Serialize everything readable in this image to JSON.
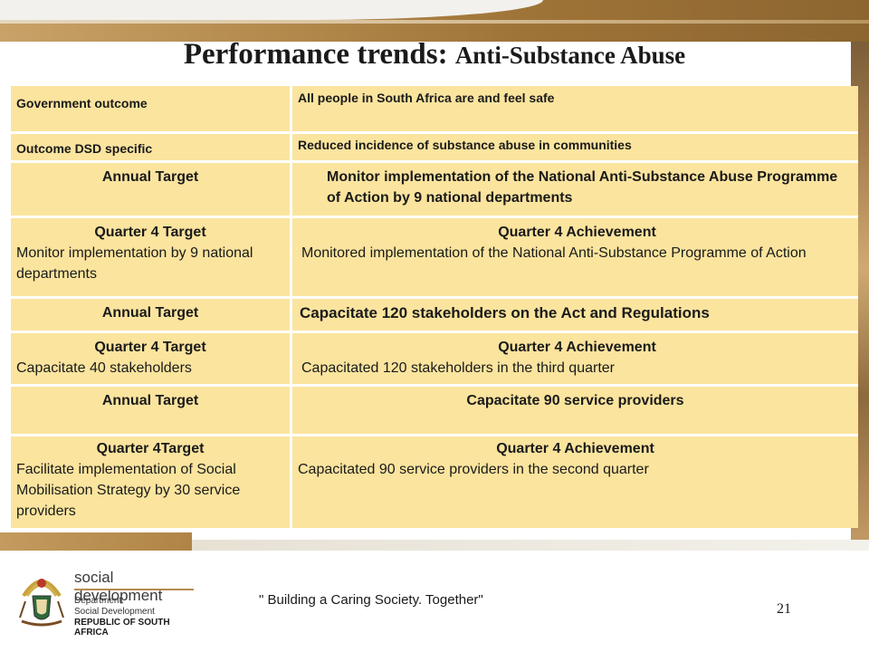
{
  "title": {
    "main": "Performance trends: ",
    "sub": "Anti-Substance Abuse"
  },
  "rows": [
    {
      "left": "Government outcome",
      "right": "All people in South Africa are and feel safe"
    },
    {
      "left": "Outcome DSD specific",
      "right": "Reduced incidence of substance abuse in communities"
    },
    {
      "left": "Annual Target",
      "right": "Monitor implementation of the National Anti-Substance Abuse Programme of Action by 9 national departments"
    },
    {
      "left_header": "Quarter 4 Target",
      "left": "Monitor implementation by 9 national departments",
      "right_header": "Quarter 4  Achievement",
      "right": "Monitored implementation of the National Anti-Substance Programme of Action"
    },
    {
      "left": "Annual Target",
      "right": "Capacitate 120 stakeholders on the Act and Regulations"
    },
    {
      "left_header": "Quarter 4 Target",
      "left": "Capacitate 40 stakeholders",
      "right_header": "Quarter 4 Achievement",
      "right": "Capacitated 120 stakeholders in the third quarter"
    },
    {
      "left": "Annual Target",
      "right": "Capacitate 90 service providers"
    },
    {
      "left_header": "Quarter 4Target",
      "left": "Facilitate implementation of Social Mobilisation Strategy by 30 service providers",
      "right_header": "Quarter 4 Achievement",
      "right": "Capacitated 90 service providers in the second quarter"
    }
  ],
  "footer": {
    "logo_word": "social development",
    "logo_line1": "Department:",
    "logo_line2": "Social Development",
    "logo_line3": "REPUBLIC OF SOUTH AFRICA",
    "slogan": "\" Building a Caring Society. Together\"",
    "page_number": "21"
  },
  "colors": {
    "cell": "#fbe49e",
    "band": "#b58b4e"
  }
}
